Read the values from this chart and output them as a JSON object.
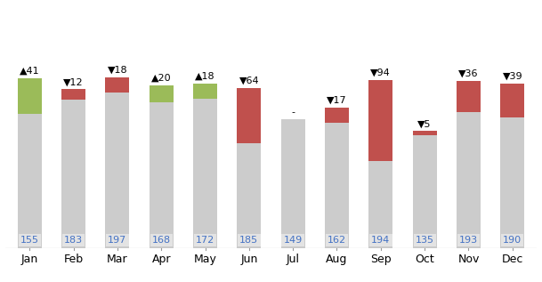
{
  "months": [
    "Jan",
    "Feb",
    "Mar",
    "Apr",
    "May",
    "Jun",
    "Jul",
    "Aug",
    "Sep",
    "Oct",
    "Nov",
    "Dec"
  ],
  "budget": [
    155,
    183,
    197,
    168,
    172,
    185,
    149,
    162,
    194,
    135,
    193,
    190
  ],
  "variance": [
    41,
    -12,
    -18,
    20,
    18,
    -64,
    0,
    -17,
    -94,
    -5,
    -36,
    -39
  ],
  "variance_labels": [
    "▲41",
    "▼12",
    "▼18",
    "▲20",
    "▲18",
    "▼64",
    "-",
    "▼17",
    "▼94",
    "▼5",
    "▼36",
    "▼39"
  ],
  "budget_color": "#cccccc",
  "positive_color": "#9bbb59",
  "negative_color": "#c0504d",
  "budget_label_color": "#4472c4",
  "bar_width": 0.55,
  "budget_label_fontsize": 8,
  "variance_label_fontsize": 8,
  "month_fontsize": 9,
  "background_color": "#ffffff",
  "ylim_max": 260,
  "display_scale": 1.0
}
